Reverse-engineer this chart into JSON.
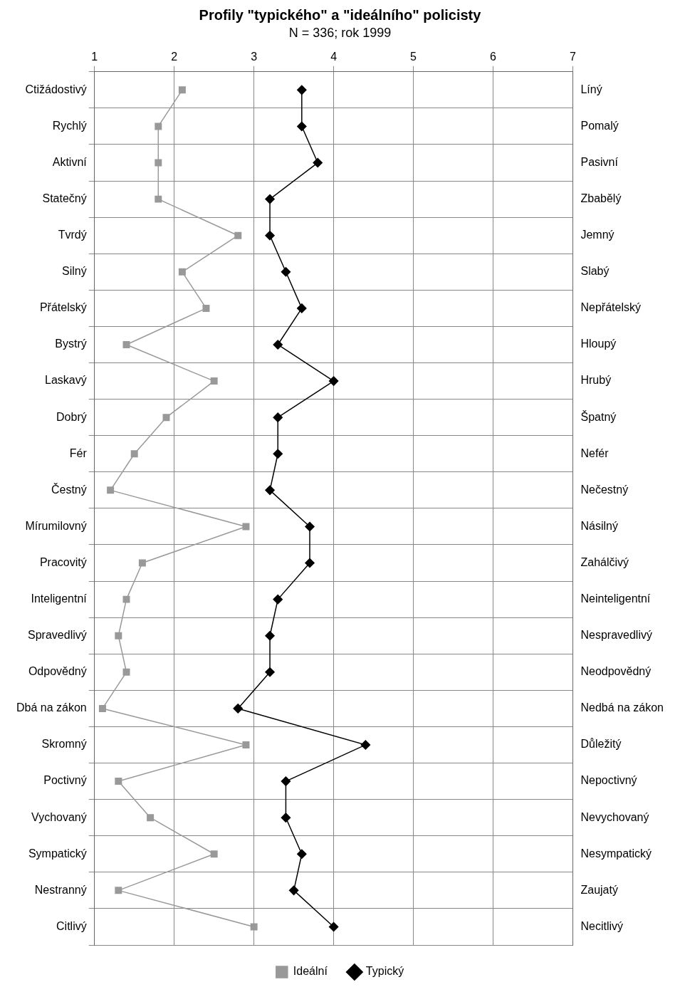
{
  "chart_data": {
    "type": "line",
    "orientation": "horizontal",
    "title": "Profily \"typického\" a \"ideálního\" policisty",
    "subtitle": "N = 336; rok 1999",
    "categories": [
      "Ctižádostivý",
      "Rychlý",
      "Aktivní",
      "Statečný",
      "Tvrdý",
      "Silný",
      "Přátelský",
      "Bystrý",
      "Laskavý",
      "Dobrý",
      "Fér",
      "Čestný",
      "Mírumilovný",
      "Pracovitý",
      "Inteligentní",
      "Spravedlivý",
      "Odpovědný",
      "Dbá na zákon",
      "Skromný",
      "Poctivný",
      "Vychovaný",
      "Sympatický",
      "Nestranný",
      "Citlivý"
    ],
    "y2_categories": [
      "Líný",
      "Pomalý",
      "Pasivní",
      "Zbabělý",
      "Jemný",
      "Slabý",
      "Nepřátelský",
      "Hloupý",
      "Hrubý",
      "Špatný",
      "Nefér",
      "Nečestný",
      "Násilný",
      "Zahálčivý",
      "Neinteligentní",
      "Nespravedlivý",
      "Neodpovědný",
      "Nedbá na zákon",
      "Důležitý",
      "Nepoctivný",
      "Nevychovaný",
      "Nesympatický",
      "Zaujatý",
      "Necitlivý"
    ],
    "series": [
      {
        "name": "Ideální",
        "color": "#999999",
        "marker": "square",
        "values": [
          2.1,
          1.8,
          1.8,
          1.8,
          2.8,
          2.1,
          2.4,
          1.4,
          2.5,
          1.9,
          1.5,
          1.2,
          2.9,
          1.6,
          1.4,
          1.3,
          1.4,
          1.1,
          2.9,
          1.3,
          1.7,
          2.5,
          1.3,
          3.0
        ]
      },
      {
        "name": "Typický",
        "color": "#000000",
        "marker": "diamond",
        "values": [
          3.6,
          3.6,
          3.8,
          3.2,
          3.2,
          3.4,
          3.6,
          3.3,
          4.0,
          3.3,
          3.3,
          3.2,
          3.7,
          3.7,
          3.3,
          3.2,
          3.2,
          2.8,
          4.4,
          3.4,
          3.4,
          3.6,
          3.5,
          4.0
        ]
      }
    ],
    "xlim": [
      1,
      7
    ],
    "xticks": [
      1,
      2,
      3,
      4,
      5,
      6,
      7
    ],
    "grid": true,
    "legend": "bottom"
  }
}
